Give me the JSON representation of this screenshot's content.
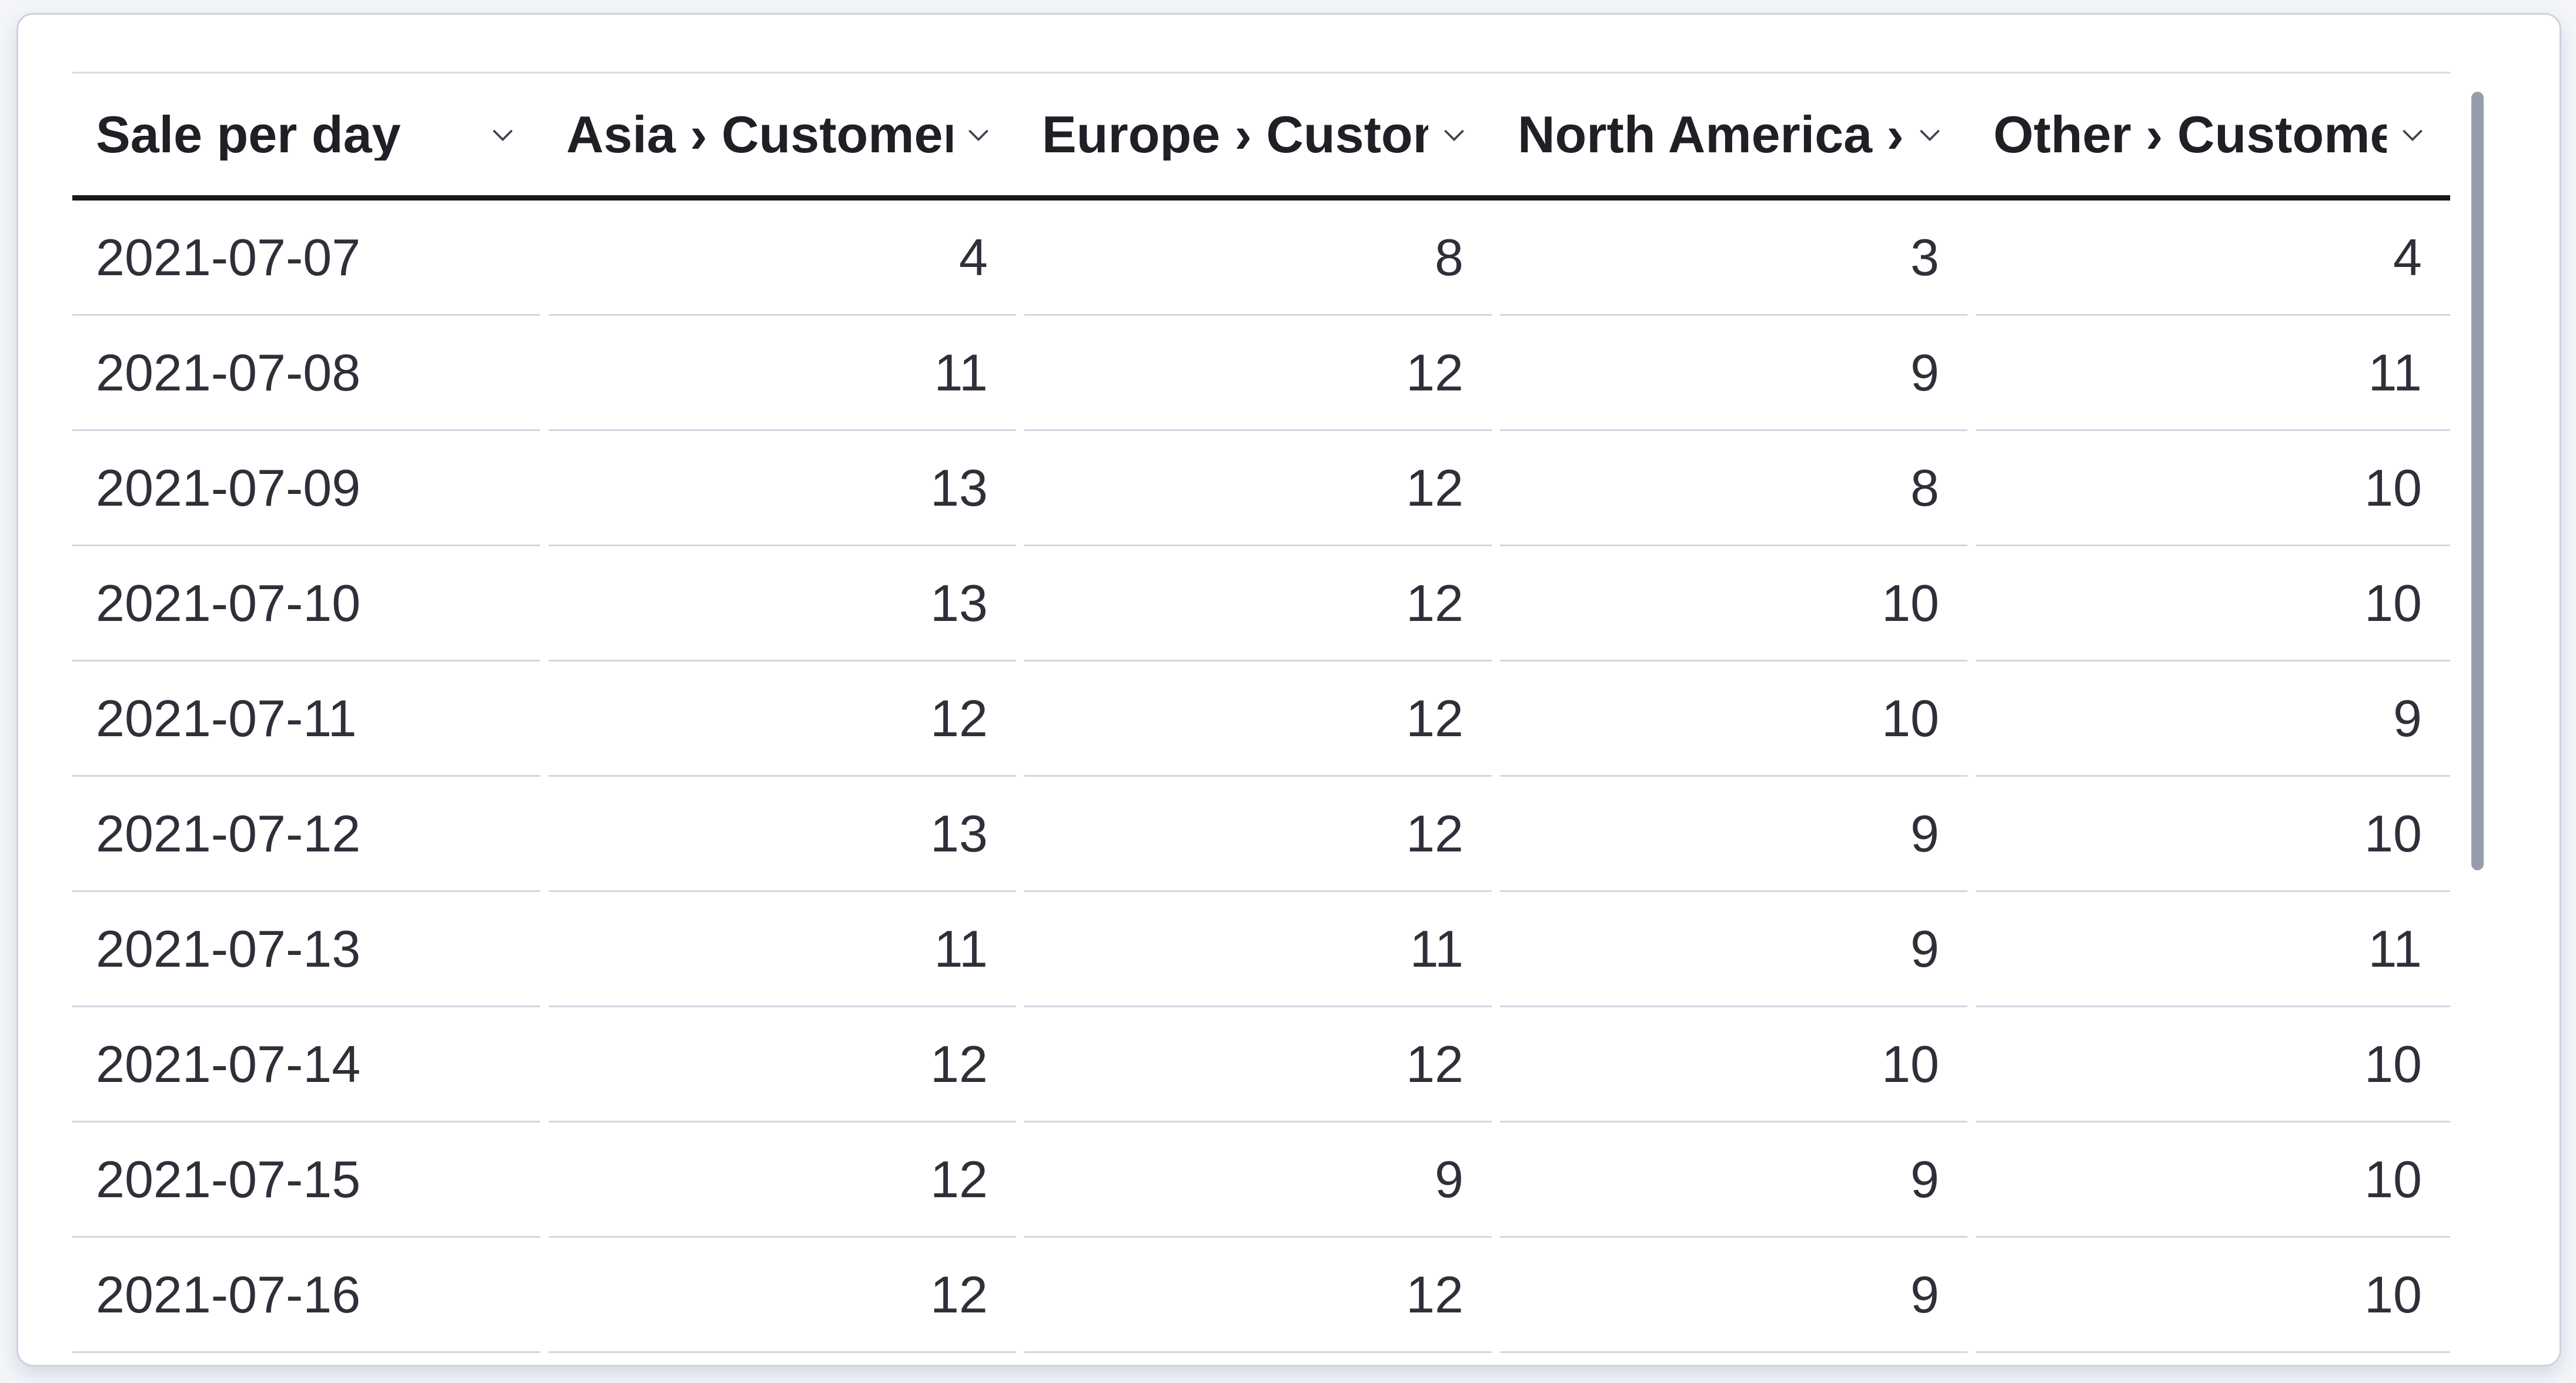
{
  "panel": {
    "type": "data-grid"
  },
  "table": {
    "columns": [
      {
        "label": "Sale per day",
        "align": "left"
      },
      {
        "label": "Asia › Customers",
        "align": "right"
      },
      {
        "label": "Europe › Customers",
        "align": "right"
      },
      {
        "label": "North America › Customers",
        "align": "right"
      },
      {
        "label": "Other › Customers",
        "align": "right"
      }
    ],
    "rows": [
      [
        "2021-07-07",
        "4",
        "8",
        "3",
        "4"
      ],
      [
        "2021-07-08",
        "11",
        "12",
        "9",
        "11"
      ],
      [
        "2021-07-09",
        "13",
        "12",
        "8",
        "10"
      ],
      [
        "2021-07-10",
        "13",
        "12",
        "10",
        "10"
      ],
      [
        "2021-07-11",
        "12",
        "12",
        "10",
        "9"
      ],
      [
        "2021-07-12",
        "13",
        "12",
        "9",
        "10"
      ],
      [
        "2021-07-13",
        "11",
        "11",
        "9",
        "11"
      ],
      [
        "2021-07-14",
        "12",
        "12",
        "10",
        "10"
      ],
      [
        "2021-07-15",
        "12",
        "9",
        "9",
        "10"
      ],
      [
        "2021-07-16",
        "12",
        "12",
        "9",
        "10"
      ]
    ]
  },
  "icons": {
    "header_sort": "chevron-down-icon"
  },
  "colors": {
    "page_background": "#f3f5f9",
    "card_background": "#ffffff",
    "card_border": "#cbd3e0",
    "header_text": "#1e2026",
    "header_underline": "#17181d",
    "body_text": "#2e3039",
    "row_divider": "#d0d8e3",
    "grid_top_border": "#d4dbe6",
    "scrollbar_thumb": "#969daa",
    "chevron": "#3c414d"
  }
}
